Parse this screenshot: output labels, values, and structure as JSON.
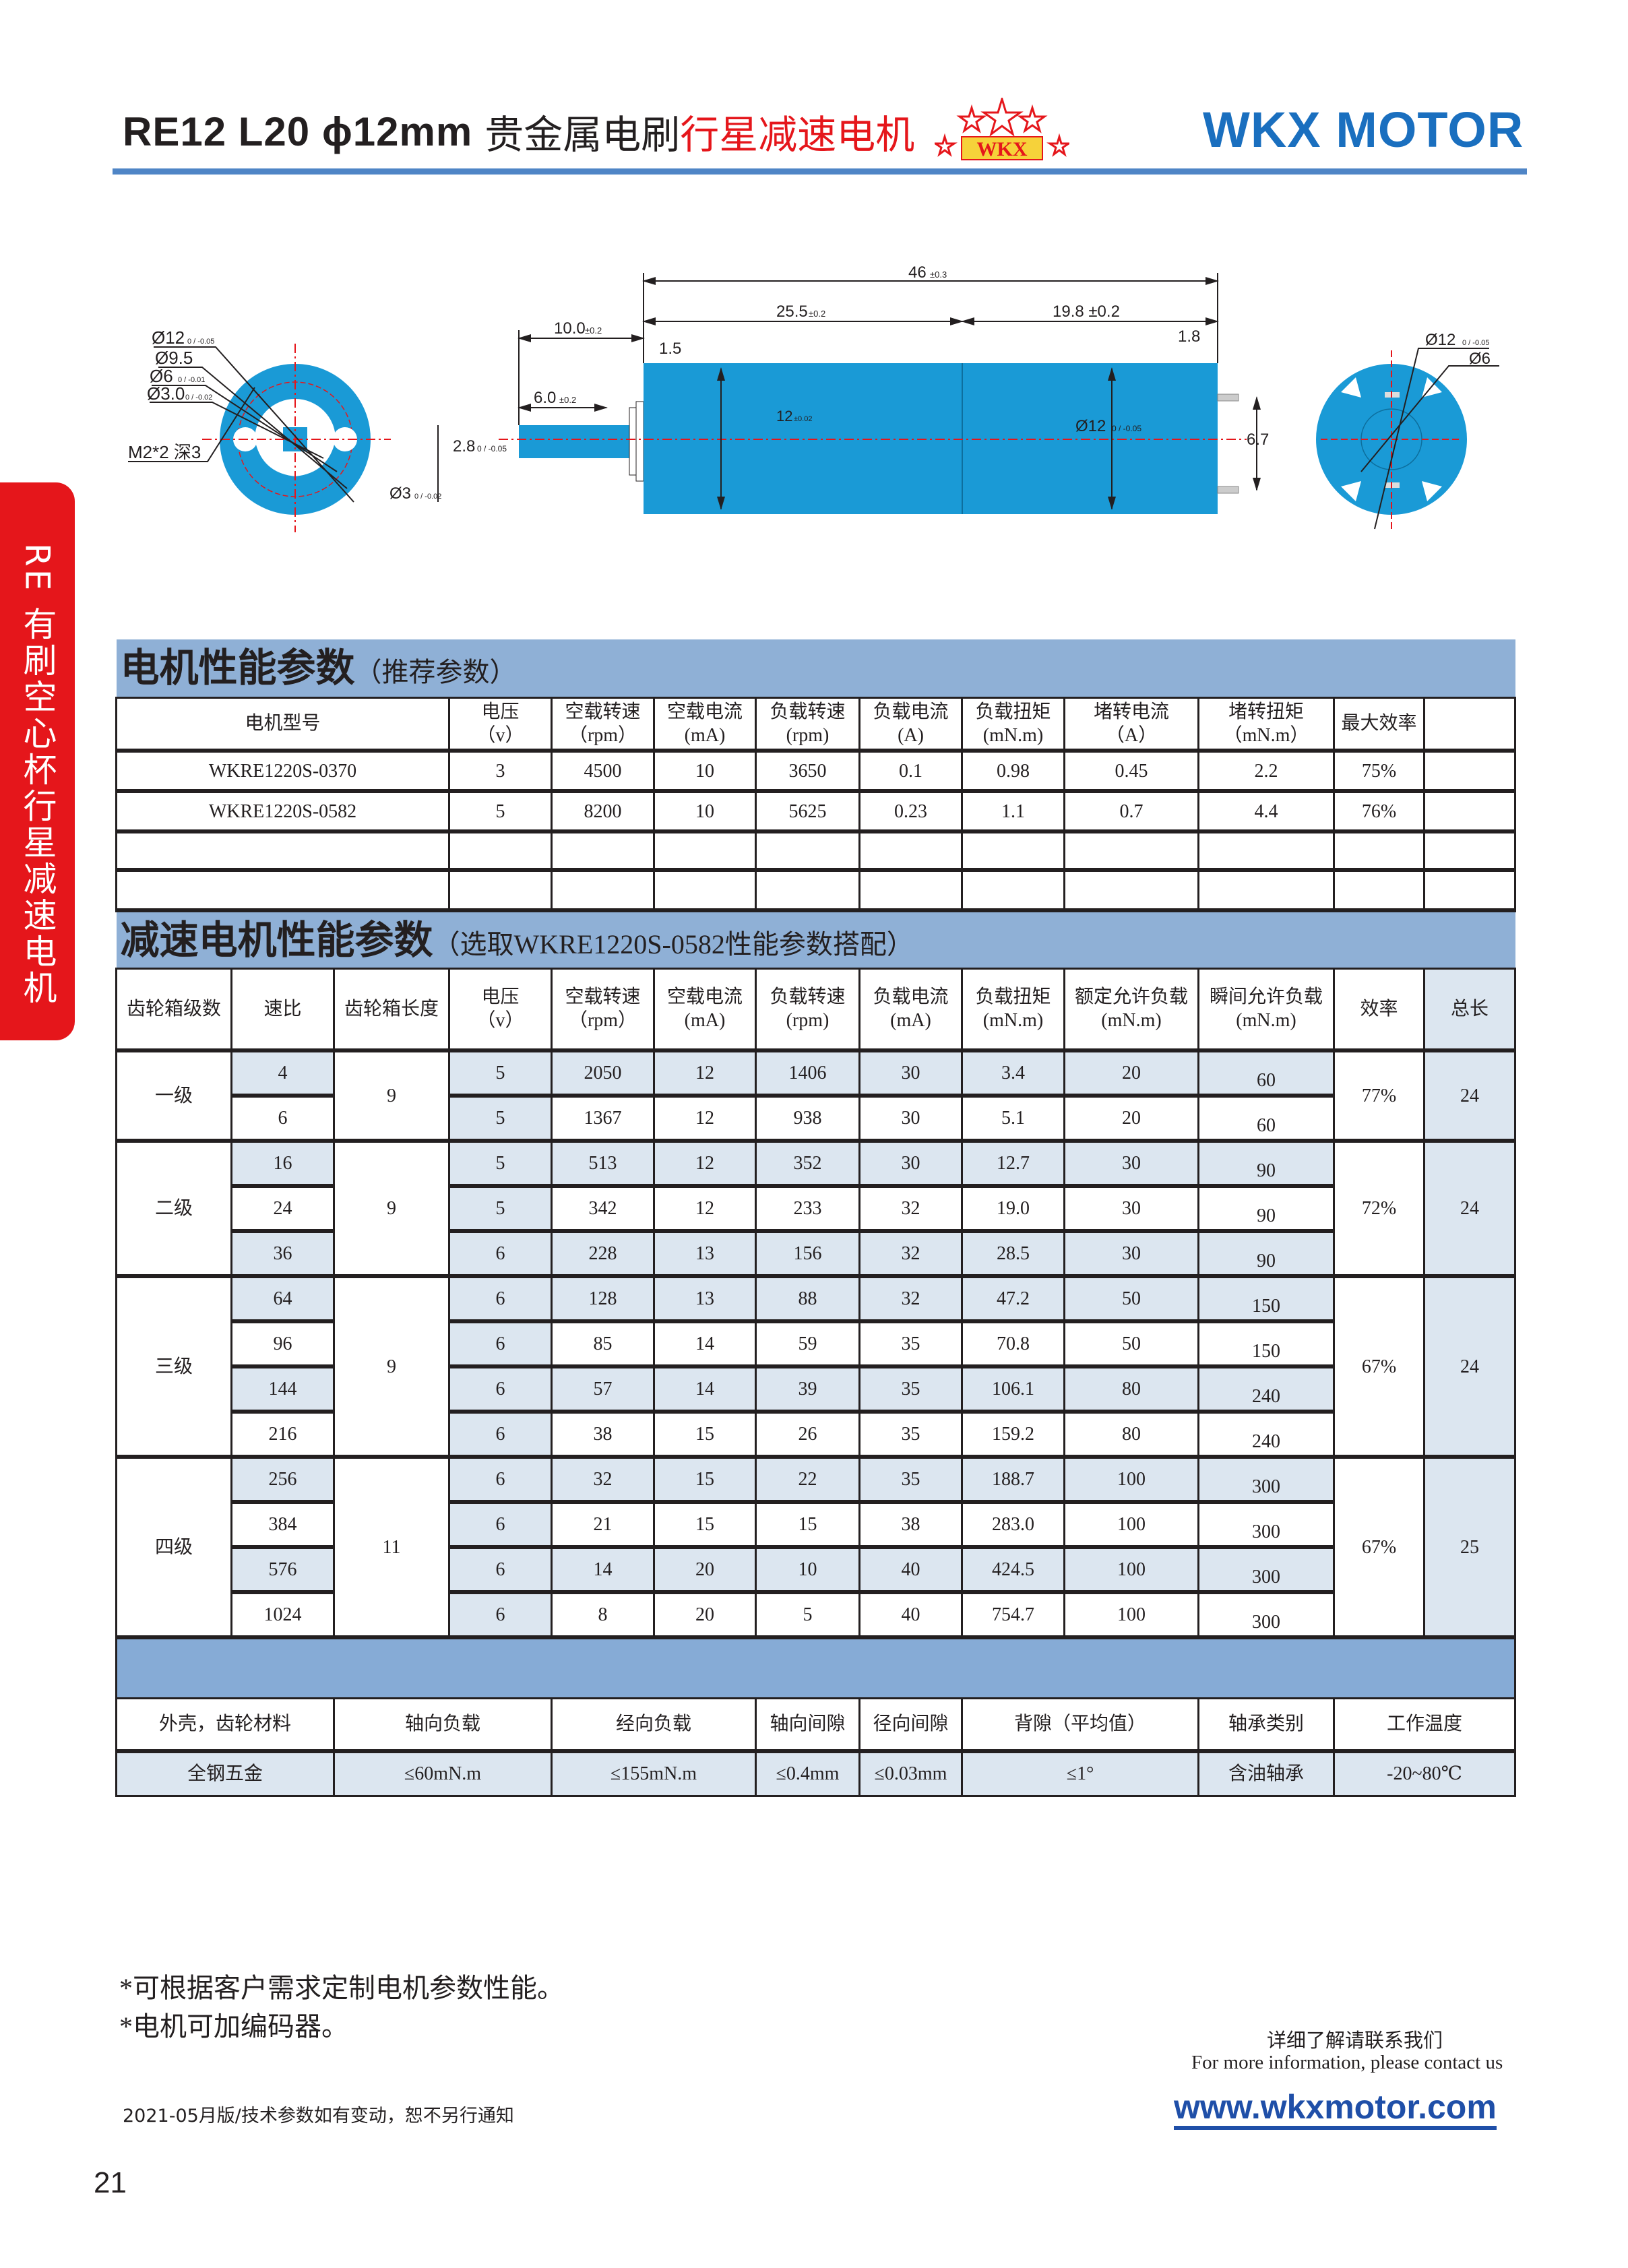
{
  "header": {
    "model": "RE12  L20  ϕ12mm",
    "title_black": "贵金属电刷",
    "title_red": "行星减速电机",
    "logo_text": "WKX",
    "brand": "WKX MOTOR",
    "accent_color": "#4f85c6",
    "brand_color": "#1a6fbf"
  },
  "side_tab": {
    "label": "RE 有刷空心杯行星减速电机",
    "color": "#e5161b"
  },
  "drawing": {
    "front": [
      {
        "main": "Ø12",
        "tol": "0 / -0.05"
      },
      {
        "main": "Ø9.5",
        "tol": ""
      },
      {
        "main": "Ø6",
        "tol": "0 / -0.01"
      },
      {
        "main": "Ø3.0",
        "tol": "0 / -0.02"
      },
      {
        "main": "M2*2 深3",
        "tol": ""
      }
    ],
    "shaft_dia": {
      "main": "Ø3",
      "tol": "0 / -0.02"
    },
    "flat": {
      "main": "2.8",
      "tol": "0 / -0.05"
    },
    "shaft_len": {
      "main": "10.0",
      "tol": "±0.2"
    },
    "flat_len": {
      "main": "6.0",
      "tol": "±0.2"
    },
    "total_len": {
      "main": "46",
      "tol": "±0.3"
    },
    "gear_len": {
      "main": "25.5",
      "tol": "±0.2"
    },
    "motor_len": {
      "main": "19.8 ±0.2",
      "tol": ""
    },
    "flange": "1.5",
    "pin": "1.8",
    "body_dia": {
      "main": "12",
      "tol": "±0.02"
    },
    "motor_dia": {
      "main": "Ø12",
      "tol": "0 / -0.05"
    },
    "pin_pitch": "6.7",
    "rear_dia": {
      "main": "Ø12",
      "tol": "0 / -0.05"
    },
    "rear_inner": "Ø6",
    "body_color": "#1a9ad6"
  },
  "motor_table": {
    "title": "电机性能参数",
    "subtitle": "（推荐参数）",
    "headers": [
      "电机型号",
      "电压\n（v）",
      "空载转速\n（rpm）",
      "空载电流\n(mA)",
      "负载转速\n(rpm)",
      "负载电流\n(A)",
      "负载扭矩\n(mN.m)",
      "堵转电流\n（A）",
      "堵转扭矩\n（mN.m）",
      "最大效率",
      ""
    ],
    "rows": [
      [
        "WKRE1220S-0370",
        "3",
        "4500",
        "10",
        "3650",
        "0.1",
        "0.98",
        "0.45",
        "2.2",
        "75%",
        ""
      ],
      [
        "WKRE1220S-0582",
        "5",
        "8200",
        "10",
        "5625",
        "0.23",
        "1.1",
        "0.7",
        "4.4",
        "76%",
        ""
      ],
      [
        "",
        "",
        "",
        "",
        "",
        "",
        "",
        "",
        "",
        "",
        ""
      ],
      [
        "",
        "",
        "",
        "",
        "",
        "",
        "",
        "",
        "",
        "",
        ""
      ]
    ]
  },
  "gear_table": {
    "title": "减速电机性能参数",
    "subtitle": "（选取WKRE1220S-0582性能参数搭配）",
    "headers": [
      "齿轮箱级数",
      "速比",
      "齿轮箱长度",
      "电压\n（v）",
      "空载转速\n（rpm）",
      "空载电流\n(mA)",
      "负载转速\n(rpm)",
      "负载电流\n(mA)",
      "负载扭矩\n(mN.m)",
      "额定允许负载\n(mN.m)",
      "瞬间允许负载\n(mN.m)",
      "效率",
      "总长"
    ],
    "groups": [
      {
        "stage": "一级",
        "length": "9",
        "efficiency": "77%",
        "total": "24",
        "rows": [
          [
            "4",
            "5",
            "2050",
            "12",
            "1406",
            "30",
            "3.4",
            "20",
            "60"
          ],
          [
            "6",
            "5",
            "1367",
            "12",
            "938",
            "30",
            "5.1",
            "20",
            "60"
          ]
        ]
      },
      {
        "stage": "二级",
        "length": "9",
        "efficiency": "72%",
        "total": "24",
        "rows": [
          [
            "16",
            "5",
            "513",
            "12",
            "352",
            "30",
            "12.7",
            "30",
            "90"
          ],
          [
            "24",
            "5",
            "342",
            "12",
            "233",
            "32",
            "19.0",
            "30",
            "90"
          ],
          [
            "36",
            "6",
            "228",
            "13",
            "156",
            "32",
            "28.5",
            "30",
            "90"
          ]
        ]
      },
      {
        "stage": "三级",
        "length": "9",
        "efficiency": "67%",
        "total": "24",
        "rows": [
          [
            "64",
            "6",
            "128",
            "13",
            "88",
            "32",
            "47.2",
            "50",
            "150"
          ],
          [
            "96",
            "6",
            "85",
            "14",
            "59",
            "35",
            "70.8",
            "50",
            "150"
          ],
          [
            "144",
            "6",
            "57",
            "14",
            "39",
            "35",
            "106.1",
            "80",
            "240"
          ],
          [
            "216",
            "6",
            "38",
            "15",
            "26",
            "35",
            "159.2",
            "80",
            "240"
          ]
        ]
      },
      {
        "stage": "四级",
        "length": "11",
        "efficiency": "67%",
        "total": "25",
        "rows": [
          [
            "256",
            "6",
            "32",
            "15",
            "22",
            "35",
            "188.7",
            "100",
            "300"
          ],
          [
            "384",
            "6",
            "21",
            "15",
            "15",
            "38",
            "283.0",
            "100",
            "300"
          ],
          [
            "576",
            "6",
            "14",
            "20",
            "10",
            "40",
            "424.5",
            "100",
            "300"
          ],
          [
            "1024",
            "6",
            "8",
            "20",
            "5",
            "40",
            "754.7",
            "100",
            "300"
          ]
        ]
      }
    ]
  },
  "general_specs": {
    "headers": [
      "外壳，齿轮材料",
      "轴向负载",
      "经向负载",
      "轴向间隙",
      "径向间隙",
      "背隙（平均值）",
      "轴承类别",
      "工作温度"
    ],
    "values": [
      "全钢五金",
      "≤60mN.m",
      "≤155mN.m",
      "≤0.4mm",
      "≤0.03mm",
      "≤1°",
      "含油轴承",
      "-20~80℃"
    ]
  },
  "footer": {
    "notes": [
      "*可根据客户需求定制电机参数性能。",
      "*电机可加编码器。"
    ],
    "contact_cn": "详细了解请联系我们",
    "contact_en": "For more information, please contact us",
    "url": "www.wkxmotor.com",
    "date_note": "2021-05月版/技术参数如有变动，恕不另行通知",
    "page_number": "21"
  }
}
